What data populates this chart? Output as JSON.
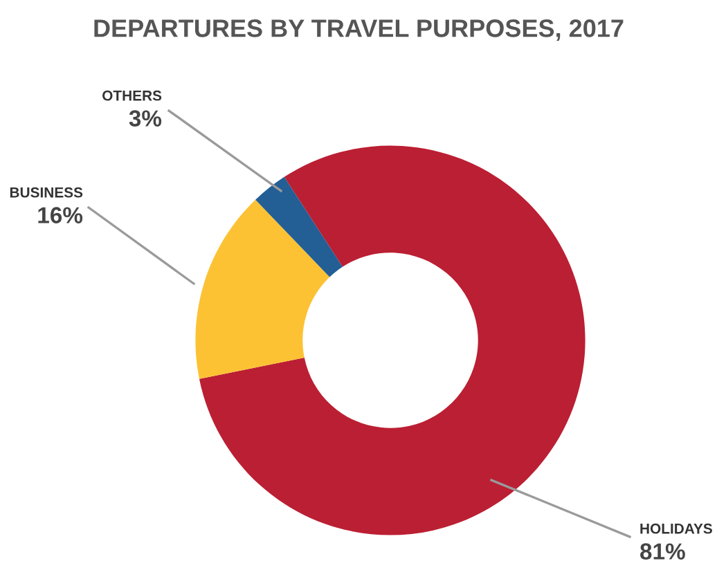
{
  "chart_data": {
    "type": "donut",
    "title": "DEPARTURES BY TRAVEL PURPOSES, 2017",
    "categories": [
      "HOLIDAYS",
      "BUSINESS",
      "OTHERS"
    ],
    "values": [
      81,
      16,
      3
    ],
    "colors": [
      "#bb1f33",
      "#fcc234",
      "#235e94"
    ],
    "value_labels": [
      "81%",
      "16%",
      "3%"
    ]
  }
}
